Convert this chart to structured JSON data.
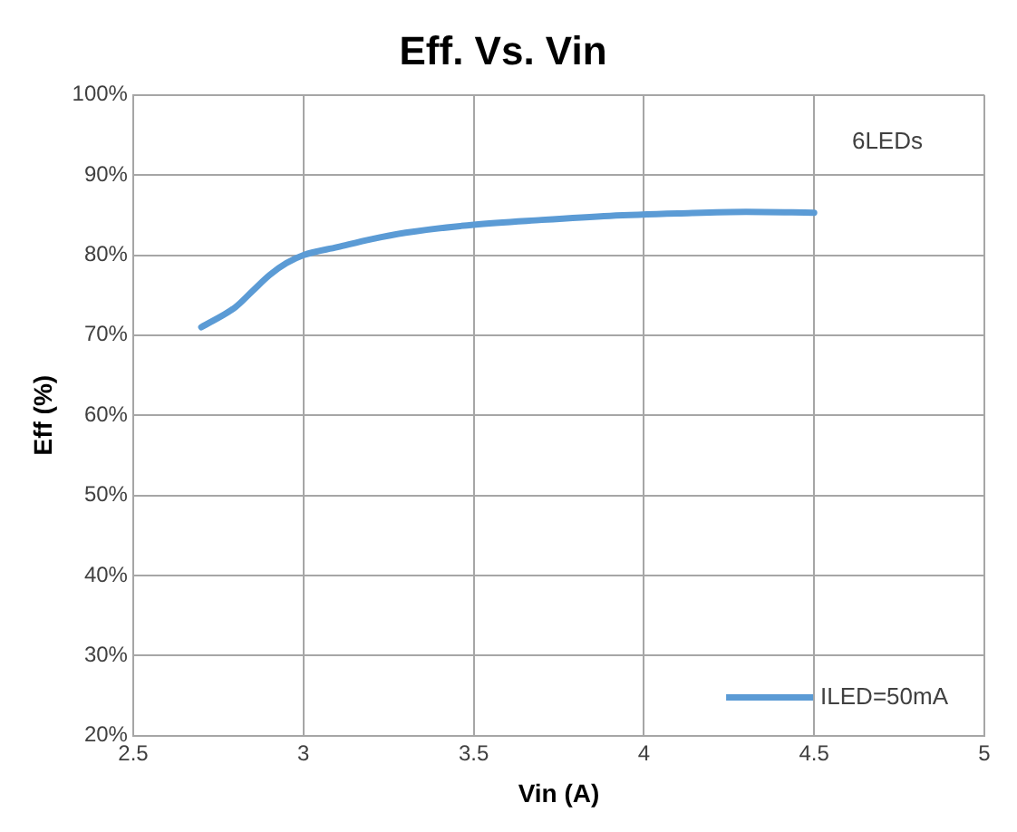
{
  "chart_data": {
    "type": "line",
    "title": "Eff. Vs. Vin",
    "xlabel": "Vin (A)",
    "ylabel": "Eff (%)",
    "annotations": [
      "6LEDs"
    ],
    "series": [
      {
        "name": "ILED=50mA",
        "color": "#5b9bd5",
        "x": [
          2.7,
          2.8,
          2.85,
          2.9,
          2.95,
          3.0,
          3.1,
          3.2,
          3.3,
          3.5,
          3.7,
          3.9,
          4.1,
          4.3,
          4.5
        ],
        "values": [
          71,
          73.5,
          75.5,
          77.5,
          79,
          80,
          81,
          82,
          82.8,
          83.8,
          84.4,
          84.9,
          85.2,
          85.4,
          85.3
        ]
      }
    ],
    "xlim": [
      2.5,
      5
    ],
    "xticks": [
      2.5,
      3,
      3.5,
      4,
      4.5,
      5
    ],
    "ylim": [
      20,
      100
    ],
    "yticks": [
      {
        "value": 20,
        "label": "20%"
      },
      {
        "value": 30,
        "label": "30%"
      },
      {
        "value": 40,
        "label": "40%"
      },
      {
        "value": 50,
        "label": "50%"
      },
      {
        "value": 60,
        "label": "60%"
      },
      {
        "value": 70,
        "label": "70%"
      },
      {
        "value": 80,
        "label": "80%"
      },
      {
        "value": 90,
        "label": "90%"
      },
      {
        "value": 100,
        "label": "100%"
      }
    ],
    "grid": true,
    "legend": "bottom right",
    "marker": "none",
    "line_style": "solid"
  }
}
